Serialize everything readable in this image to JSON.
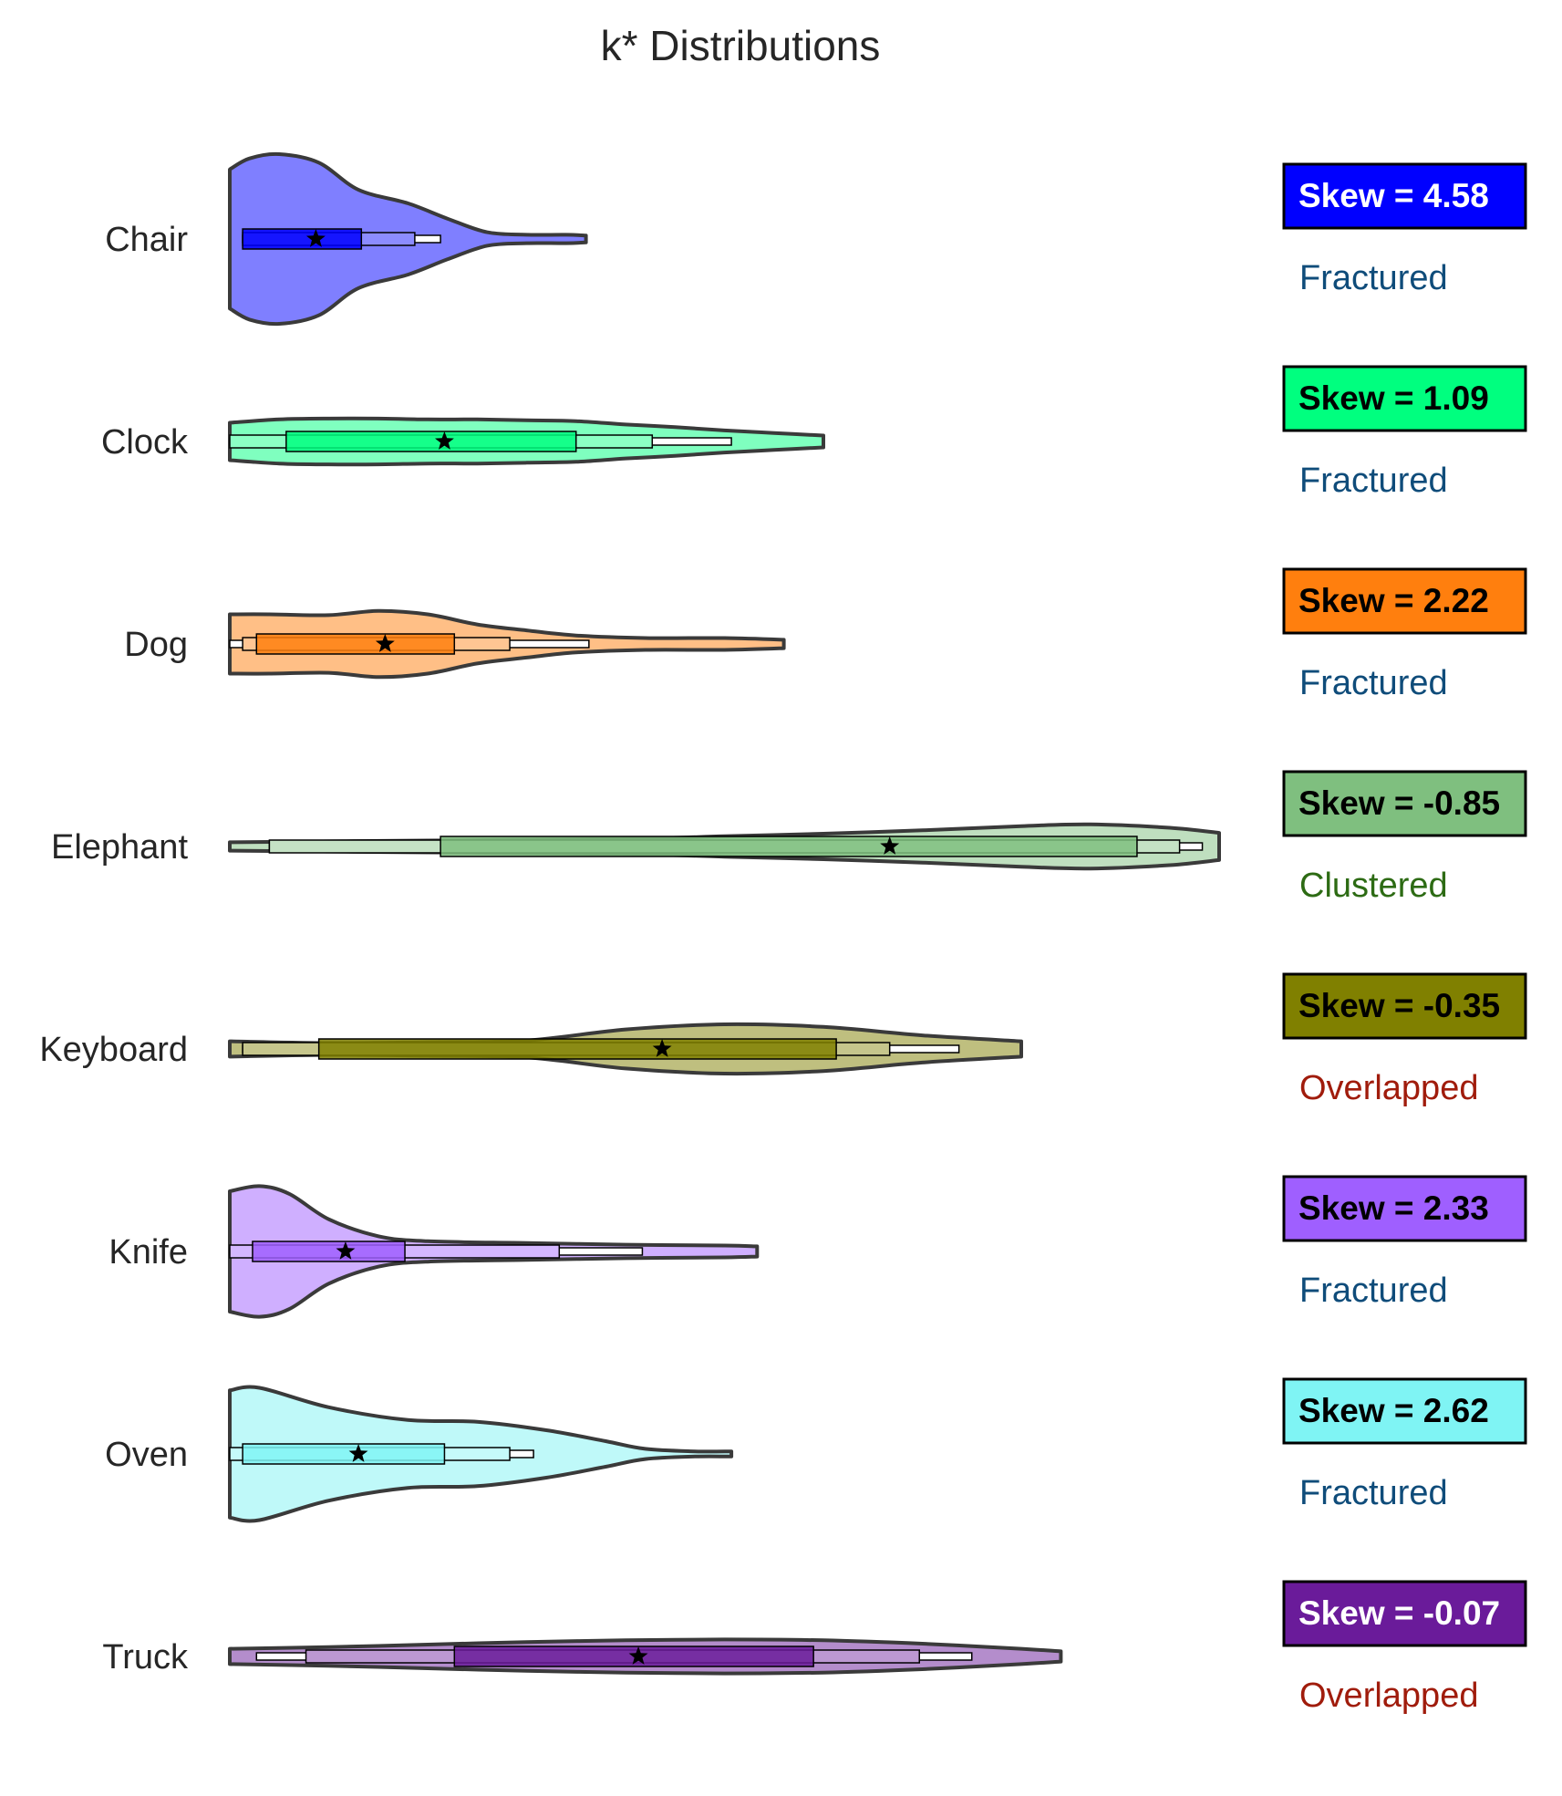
{
  "chart_data": {
    "type": "violin",
    "title": "k* Distributions",
    "xlabel": "",
    "ylabel": "",
    "grid": false,
    "legend": "none",
    "categories": [
      "Chair",
      "Clock",
      "Dog",
      "Elephant",
      "Keyboard",
      "Knife",
      "Oven",
      "Truck"
    ],
    "series": [
      {
        "category": "Chair",
        "color": "#0000ff",
        "skew_label": "Skew = 4.58",
        "skew_text_color": "#ffffff",
        "status": "Fractured",
        "status_color": "#0f4c7a",
        "range": [
          0,
          0.36
        ],
        "quantiles": {
          "p1": 0.013,
          "p10": 0.013,
          "p25": 0.013,
          "median": 0.087,
          "p75": 0.133,
          "p90": 0.187,
          "p99": 0.213
        },
        "density": [
          [
            0,
            0.82
          ],
          [
            0.02,
            0.95
          ],
          [
            0.05,
            1.0
          ],
          [
            0.09,
            0.9
          ],
          [
            0.13,
            0.58
          ],
          [
            0.18,
            0.42
          ],
          [
            0.22,
            0.24
          ],
          [
            0.26,
            0.08
          ],
          [
            0.3,
            0.05
          ],
          [
            0.34,
            0.05
          ],
          [
            0.36,
            0.04
          ]
        ]
      },
      {
        "category": "Clock",
        "color": "#00ff7f",
        "skew_label": "Skew = 1.09",
        "skew_text_color": "#000000",
        "status": "Fractured",
        "status_color": "#0f4c7a",
        "range": [
          0,
          0.6
        ],
        "quantiles": {
          "p1": 0.0,
          "p10": 0.0,
          "p25": 0.057,
          "median": 0.217,
          "p75": 0.35,
          "p90": 0.427,
          "p99": 0.507
        },
        "density": [
          [
            0,
            0.22
          ],
          [
            0.05,
            0.26
          ],
          [
            0.1,
            0.27
          ],
          [
            0.15,
            0.27
          ],
          [
            0.2,
            0.26
          ],
          [
            0.25,
            0.26
          ],
          [
            0.3,
            0.25
          ],
          [
            0.35,
            0.24
          ],
          [
            0.4,
            0.2
          ],
          [
            0.45,
            0.17
          ],
          [
            0.5,
            0.13
          ],
          [
            0.55,
            0.1
          ],
          [
            0.6,
            0.07
          ]
        ]
      },
      {
        "category": "Dog",
        "color": "#ff7f0e",
        "skew_label": "Skew = 2.22",
        "skew_text_color": "#000000",
        "status": "Fractured",
        "status_color": "#0f4c7a",
        "range": [
          0,
          0.56
        ],
        "quantiles": {
          "p1": 0.0,
          "p10": 0.013,
          "p25": 0.027,
          "median": 0.157,
          "p75": 0.227,
          "p90": 0.283,
          "p99": 0.363
        },
        "density": [
          [
            0,
            0.35
          ],
          [
            0.04,
            0.35
          ],
          [
            0.1,
            0.34
          ],
          [
            0.15,
            0.39
          ],
          [
            0.2,
            0.35
          ],
          [
            0.25,
            0.23
          ],
          [
            0.3,
            0.16
          ],
          [
            0.35,
            0.1
          ],
          [
            0.42,
            0.07
          ],
          [
            0.5,
            0.07
          ],
          [
            0.56,
            0.05
          ]
        ]
      },
      {
        "category": "Elephant",
        "color": "#7fbf7f",
        "skew_label": "Skew = -0.85",
        "skew_text_color": "#000000",
        "status": "Clustered",
        "status_color": "#2d6b14",
        "range": [
          0,
          1.0
        ],
        "quantiles": {
          "p1": 0.04,
          "p10": 0.04,
          "p25": 0.213,
          "median": 0.667,
          "p75": 0.917,
          "p90": 0.96,
          "p99": 0.983
        },
        "density": [
          [
            0,
            0.05
          ],
          [
            0.2,
            0.07
          ],
          [
            0.4,
            0.09
          ],
          [
            0.5,
            0.12
          ],
          [
            0.6,
            0.15
          ],
          [
            0.7,
            0.19
          ],
          [
            0.8,
            0.24
          ],
          [
            0.87,
            0.26
          ],
          [
            0.95,
            0.22
          ],
          [
            1.0,
            0.16
          ]
        ]
      },
      {
        "category": "Keyboard",
        "color": "#808000",
        "skew_label": "Skew = -0.35",
        "skew_text_color": "#000000",
        "status": "Overlapped",
        "status_color": "#a01c0c",
        "range": [
          0,
          0.8
        ],
        "quantiles": {
          "p1": 0.013,
          "p10": 0.013,
          "p25": 0.09,
          "median": 0.437,
          "p75": 0.613,
          "p90": 0.667,
          "p99": 0.737
        },
        "density": [
          [
            0,
            0.09
          ],
          [
            0.1,
            0.07
          ],
          [
            0.2,
            0.08
          ],
          [
            0.3,
            0.1
          ],
          [
            0.4,
            0.23
          ],
          [
            0.5,
            0.29
          ],
          [
            0.6,
            0.26
          ],
          [
            0.7,
            0.16
          ],
          [
            0.8,
            0.09
          ]
        ]
      },
      {
        "category": "Knife",
        "color": "#9f5fff",
        "skew_label": "Skew = 2.33",
        "skew_text_color": "#000000",
        "status": "Fractured",
        "status_color": "#0f4c7a",
        "range": [
          0,
          0.533
        ],
        "quantiles": {
          "p1": 0.0,
          "p10": 0.0,
          "p25": 0.023,
          "median": 0.117,
          "p75": 0.177,
          "p90": 0.333,
          "p99": 0.417
        },
        "density": [
          [
            0,
            0.71
          ],
          [
            0.03,
            0.77
          ],
          [
            0.06,
            0.68
          ],
          [
            0.1,
            0.38
          ],
          [
            0.15,
            0.18
          ],
          [
            0.2,
            0.12
          ],
          [
            0.3,
            0.1
          ],
          [
            0.4,
            0.08
          ],
          [
            0.5,
            0.07
          ],
          [
            0.533,
            0.06
          ]
        ]
      },
      {
        "category": "Oven",
        "color": "#7ff4f4",
        "skew_label": "Skew = 2.62",
        "skew_text_color": "#000000",
        "status": "Fractured",
        "status_color": "#0f4c7a",
        "range": [
          0,
          0.507
        ],
        "quantiles": {
          "p1": 0.0,
          "p10": 0.0,
          "p25": 0.013,
          "median": 0.13,
          "p75": 0.217,
          "p90": 0.283,
          "p99": 0.307
        },
        "density": [
          [
            0,
            0.75
          ],
          [
            0.03,
            0.78
          ],
          [
            0.1,
            0.55
          ],
          [
            0.18,
            0.4
          ],
          [
            0.25,
            0.38
          ],
          [
            0.32,
            0.28
          ],
          [
            0.38,
            0.15
          ],
          [
            0.42,
            0.06
          ],
          [
            0.47,
            0.03
          ],
          [
            0.507,
            0.03
          ]
        ]
      },
      {
        "category": "Truck",
        "color": "#6a1b9a",
        "skew_label": "Skew = -0.07",
        "skew_text_color": "#ffffff",
        "status": "Overlapped",
        "status_color": "#a01c0c",
        "range": [
          0,
          0.84
        ],
        "quantiles": {
          "p1": 0.027,
          "p10": 0.077,
          "p25": 0.227,
          "median": 0.413,
          "p75": 0.59,
          "p90": 0.697,
          "p99": 0.75
        },
        "density": [
          [
            0,
            0.09
          ],
          [
            0.1,
            0.11
          ],
          [
            0.2,
            0.14
          ],
          [
            0.3,
            0.17
          ],
          [
            0.4,
            0.19
          ],
          [
            0.5,
            0.2
          ],
          [
            0.6,
            0.19
          ],
          [
            0.7,
            0.15
          ],
          [
            0.8,
            0.09
          ],
          [
            0.84,
            0.06
          ]
        ]
      }
    ]
  }
}
